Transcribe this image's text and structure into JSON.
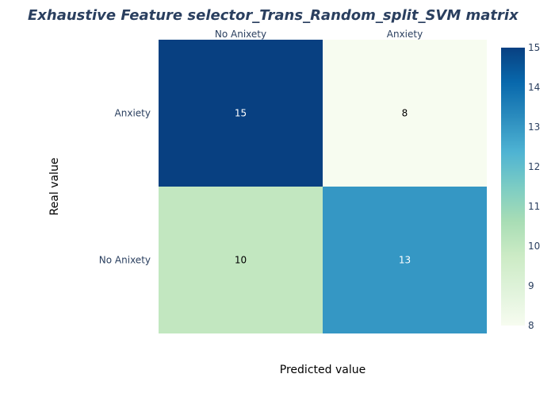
{
  "chart_data": {
    "type": "heatmap",
    "title": "Exhaustive Feature selector_Trans_Random_split_SVM matrix",
    "xlabel": "Predicted value",
    "ylabel": "Real value",
    "x_categories": [
      "No Anixety",
      "Anxiety"
    ],
    "y_categories": [
      "Anxiety",
      "No Anixety"
    ],
    "values": [
      [
        15,
        8
      ],
      [
        10,
        13
      ]
    ],
    "colorscale": "GnBu",
    "colorbar": {
      "range": [
        8,
        15
      ],
      "ticks": [
        8,
        9,
        10,
        11,
        12,
        13,
        14,
        15
      ]
    },
    "x_axis_side": "top"
  },
  "colors": {
    "cell_15": "#084081",
    "cell_8": "#f7fcf0",
    "cell_10": "#c4e8c3",
    "cell_13": "#3495c5",
    "title": "#2a3f5f"
  }
}
